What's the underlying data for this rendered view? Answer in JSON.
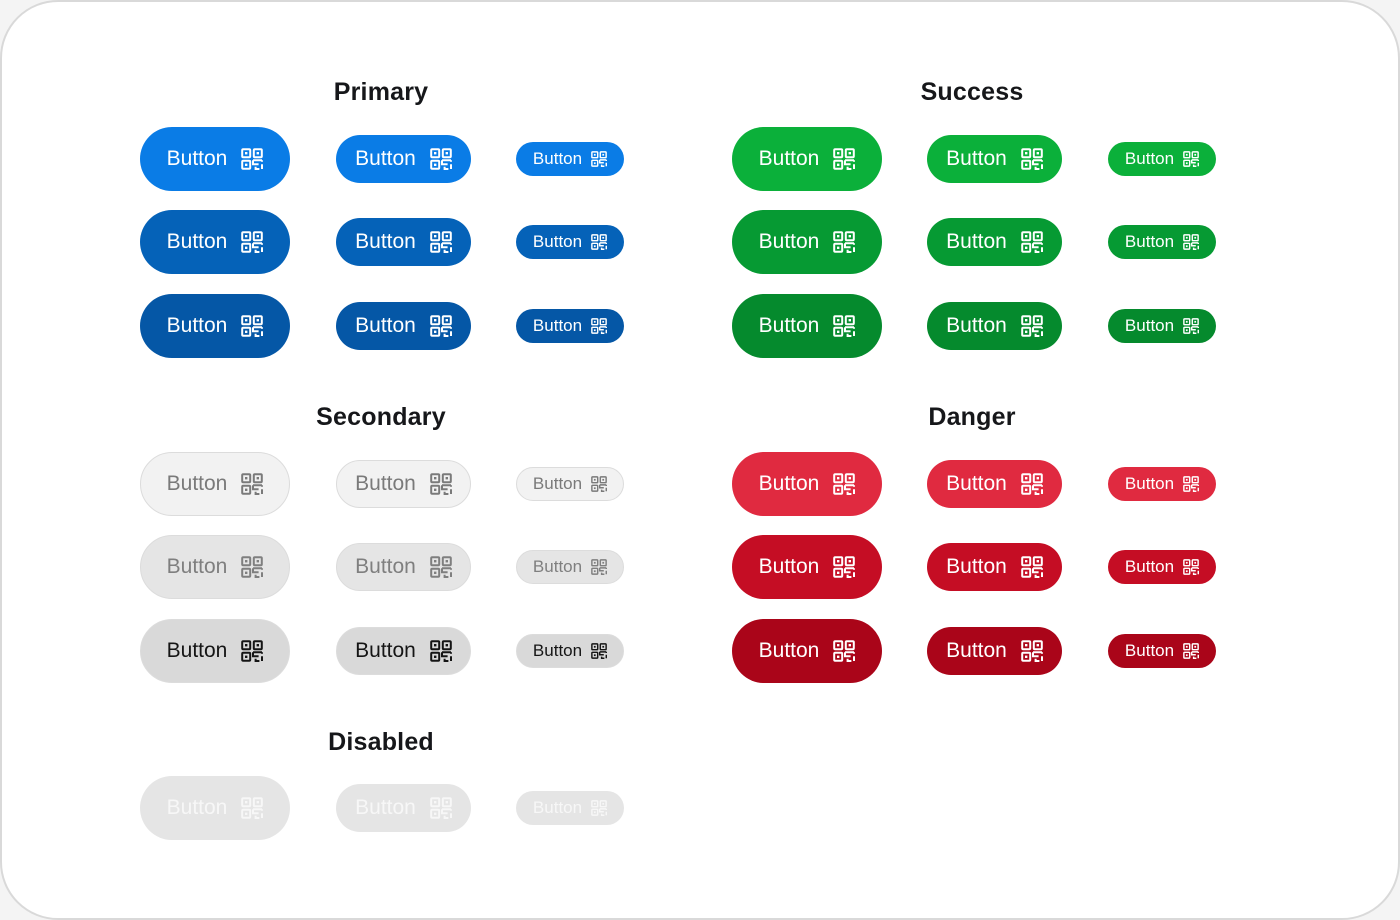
{
  "colors": {
    "page_bg": "#f4f4f4",
    "frame_bg": "#ffffff",
    "frame_border": "#d9d9d9",
    "title_text": "#16171a"
  },
  "groups": [
    {
      "id": "primary",
      "title": "Primary",
      "rows": [
        {
          "state": "default",
          "bg": "#0a7ce6",
          "text": "#ffffff",
          "buttons": [
            {
              "size": "lg",
              "label": "Button",
              "icon": "qr-code-icon"
            },
            {
              "size": "md",
              "label": "Button",
              "icon": "qr-code-icon"
            },
            {
              "size": "sm",
              "label": "Button",
              "icon": "qr-code-icon"
            }
          ]
        },
        {
          "state": "hover",
          "bg": "#0562b8",
          "text": "#ffffff",
          "buttons": [
            {
              "size": "lg",
              "label": "Button",
              "icon": "qr-code-icon"
            },
            {
              "size": "md",
              "label": "Button",
              "icon": "qr-code-icon"
            },
            {
              "size": "sm",
              "label": "Button",
              "icon": "qr-code-icon"
            }
          ]
        },
        {
          "state": "pressed",
          "bg": "#0557a6",
          "text": "#ffffff",
          "buttons": [
            {
              "size": "lg",
              "label": "Button",
              "icon": "qr-code-icon"
            },
            {
              "size": "md",
              "label": "Button",
              "icon": "qr-code-icon"
            },
            {
              "size": "sm",
              "label": "Button",
              "icon": "qr-code-icon"
            }
          ]
        }
      ]
    },
    {
      "id": "success",
      "title": "Success",
      "rows": [
        {
          "state": "default",
          "bg": "#0bb03a",
          "text": "#ffffff",
          "buttons": [
            {
              "size": "lg",
              "label": "Button",
              "icon": "qr-code-icon"
            },
            {
              "size": "md",
              "label": "Button",
              "icon": "qr-code-icon"
            },
            {
              "size": "sm",
              "label": "Button",
              "icon": "qr-code-icon"
            }
          ]
        },
        {
          "state": "hover",
          "bg": "#069a33",
          "text": "#ffffff",
          "buttons": [
            {
              "size": "lg",
              "label": "Button",
              "icon": "qr-code-icon"
            },
            {
              "size": "md",
              "label": "Button",
              "icon": "qr-code-icon"
            },
            {
              "size": "sm",
              "label": "Button",
              "icon": "qr-code-icon"
            }
          ]
        },
        {
          "state": "pressed",
          "bg": "#058a2d",
          "text": "#ffffff",
          "buttons": [
            {
              "size": "lg",
              "label": "Button",
              "icon": "qr-code-icon"
            },
            {
              "size": "md",
              "label": "Button",
              "icon": "qr-code-icon"
            },
            {
              "size": "sm",
              "label": "Button",
              "icon": "qr-code-icon"
            }
          ]
        }
      ]
    },
    {
      "id": "secondary",
      "title": "Secondary",
      "rows": [
        {
          "state": "default",
          "bg": "#f2f2f2",
          "text": "#7a7a7a",
          "buttons": [
            {
              "size": "lg",
              "label": "Button",
              "icon": "qr-code-icon"
            },
            {
              "size": "md",
              "label": "Button",
              "icon": "qr-code-icon"
            },
            {
              "size": "sm",
              "label": "Button",
              "icon": "qr-code-icon"
            }
          ]
        },
        {
          "state": "hover",
          "bg": "#e5e5e5",
          "text": "#7f7f7f",
          "buttons": [
            {
              "size": "lg",
              "label": "Button",
              "icon": "qr-code-icon"
            },
            {
              "size": "md",
              "label": "Button",
              "icon": "qr-code-icon"
            },
            {
              "size": "sm",
              "label": "Button",
              "icon": "qr-code-icon"
            }
          ]
        },
        {
          "state": "pressed",
          "bg": "#d9d9d9",
          "text": "#151515",
          "buttons": [
            {
              "size": "lg",
              "label": "Button",
              "icon": "qr-code-icon"
            },
            {
              "size": "md",
              "label": "Button",
              "icon": "qr-code-icon"
            },
            {
              "size": "sm",
              "label": "Button",
              "icon": "qr-code-icon"
            }
          ]
        }
      ]
    },
    {
      "id": "danger",
      "title": "Danger",
      "rows": [
        {
          "state": "default",
          "bg": "#e02a40",
          "text": "#ffffff",
          "buttons": [
            {
              "size": "lg",
              "label": "Button",
              "icon": "qr-code-icon"
            },
            {
              "size": "md",
              "label": "Button",
              "icon": "qr-code-icon"
            },
            {
              "size": "sm",
              "label": "Button",
              "icon": "qr-code-icon"
            }
          ]
        },
        {
          "state": "hover",
          "bg": "#c50d24",
          "text": "#ffffff",
          "buttons": [
            {
              "size": "lg",
              "label": "Button",
              "icon": "qr-code-icon"
            },
            {
              "size": "md",
              "label": "Button",
              "icon": "qr-code-icon"
            },
            {
              "size": "sm",
              "label": "Button",
              "icon": "qr-code-icon"
            }
          ]
        },
        {
          "state": "pressed",
          "bg": "#aa0519",
          "text": "#ffffff",
          "buttons": [
            {
              "size": "lg",
              "label": "Button",
              "icon": "qr-code-icon"
            },
            {
              "size": "md",
              "label": "Button",
              "icon": "qr-code-icon"
            },
            {
              "size": "sm",
              "label": "Button",
              "icon": "qr-code-icon"
            }
          ]
        }
      ]
    },
    {
      "id": "disabled",
      "title": "Disabled",
      "rows": [
        {
          "state": "disabled",
          "bg": "#e5e5e5",
          "text": "#f7f7f7",
          "buttons": [
            {
              "size": "lg",
              "label": "Button",
              "icon": "qr-code-icon"
            },
            {
              "size": "md",
              "label": "Button",
              "icon": "qr-code-icon"
            },
            {
              "size": "sm",
              "label": "Button",
              "icon": "qr-code-icon"
            }
          ]
        }
      ]
    }
  ]
}
